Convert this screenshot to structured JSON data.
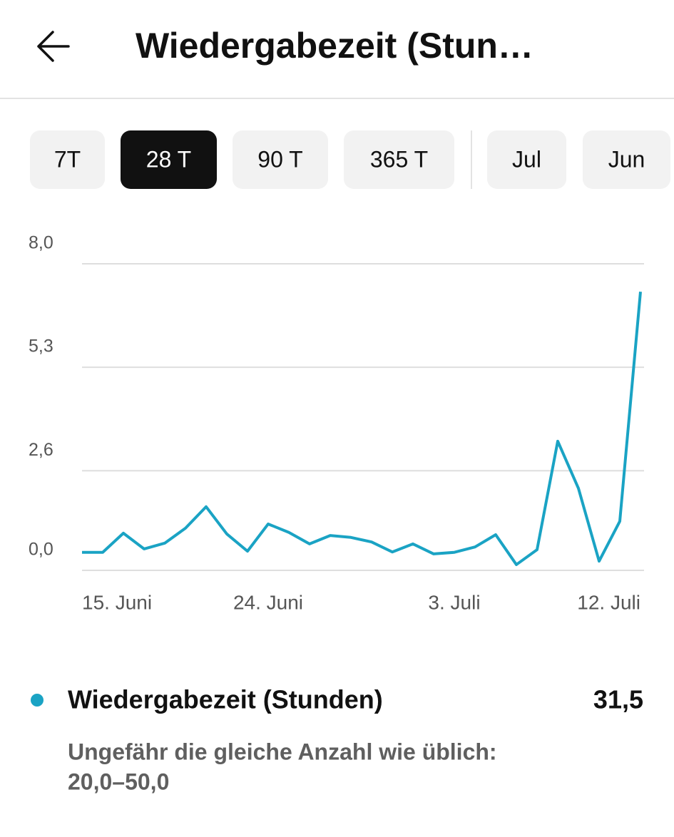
{
  "header": {
    "title": "Wiedergabezeit (Stun…"
  },
  "tabs": {
    "items": [
      "7T",
      "28 T",
      "90 T",
      "365 T",
      "Jul",
      "Jun"
    ],
    "selected": 1
  },
  "chart_data": {
    "type": "line",
    "categories": [
      "15. Juni",
      null,
      null,
      null,
      null,
      null,
      null,
      null,
      null,
      "24. Juni",
      null,
      null,
      null,
      null,
      null,
      null,
      null,
      null,
      "3. Juli",
      null,
      null,
      null,
      null,
      null,
      null,
      null,
      null,
      "12. Juli"
    ],
    "series": [
      {
        "name": "Wiedergabezeit (Stunden)",
        "color": "#1aa3c4",
        "values": [
          0.47,
          0.47,
          0.97,
          0.56,
          0.71,
          1.1,
          1.66,
          0.95,
          0.5,
          1.21,
          0.99,
          0.69,
          0.91,
          0.86,
          0.74,
          0.48,
          0.69,
          0.43,
          0.47,
          0.61,
          0.93,
          0.15,
          0.54,
          3.37,
          2.14,
          0.24,
          1.28,
          7.27
        ]
      }
    ],
    "ylim": [
      0,
      8
    ],
    "yticks": [
      {
        "value": 0,
        "label": "0,0"
      },
      {
        "value": 2.6,
        "label": "2,6"
      },
      {
        "value": 5.3,
        "label": "5,3"
      },
      {
        "value": 8,
        "label": "8,0"
      }
    ],
    "grid": true
  },
  "summary": {
    "total": "31,5",
    "note": "Ungefähr die gleiche Anzahl wie üblich:",
    "range": "20,0–50,0"
  }
}
